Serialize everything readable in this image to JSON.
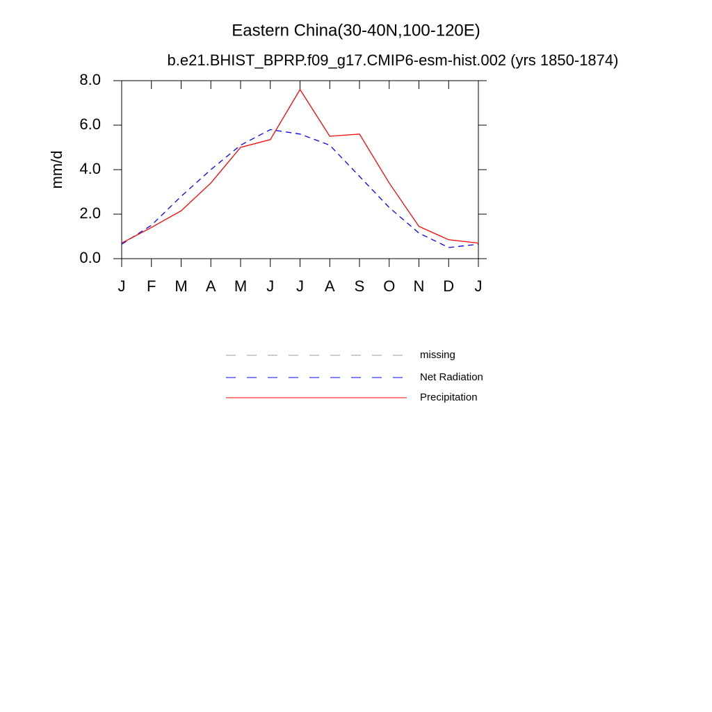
{
  "chart_data": {
    "type": "line",
    "title": "Eastern China(30-40N,100-120E)",
    "subtitle": "b.e21.BHIST_BPRP.f09_g17.CMIP6-esm-hist.002 (yrs 1850-1874)",
    "y_label": "mm/d",
    "categories": [
      "J",
      "F",
      "M",
      "A",
      "M",
      "J",
      "J",
      "A",
      "S",
      "O",
      "N",
      "D",
      "J"
    ],
    "series": [
      {
        "name": "missing",
        "color": "#999999",
        "dash": true,
        "values": [
          null,
          null,
          null,
          null,
          null,
          null,
          null,
          null,
          null,
          null,
          null,
          null,
          null
        ]
      },
      {
        "name": "Net Radiation",
        "color": "#0000ff",
        "dash": true,
        "values": [
          0.65,
          1.5,
          2.8,
          4.0,
          5.1,
          5.8,
          5.6,
          5.1,
          3.7,
          2.3,
          1.15,
          0.5,
          0.65
        ]
      },
      {
        "name": "Precipitation",
        "color": "#ff0000",
        "dash": false,
        "values": [
          0.7,
          1.4,
          2.15,
          3.4,
          5.0,
          5.35,
          7.6,
          5.5,
          5.6,
          3.4,
          1.45,
          0.85,
          0.7
        ]
      }
    ],
    "ylim": [
      0,
      8
    ],
    "yticks": [
      {
        "value": 0,
        "label": "0.0"
      },
      {
        "value": 2,
        "label": "2.0"
      },
      {
        "value": 4,
        "label": "4.0"
      },
      {
        "value": 6,
        "label": "6.0"
      },
      {
        "value": 8,
        "label": "8.0"
      }
    ]
  }
}
